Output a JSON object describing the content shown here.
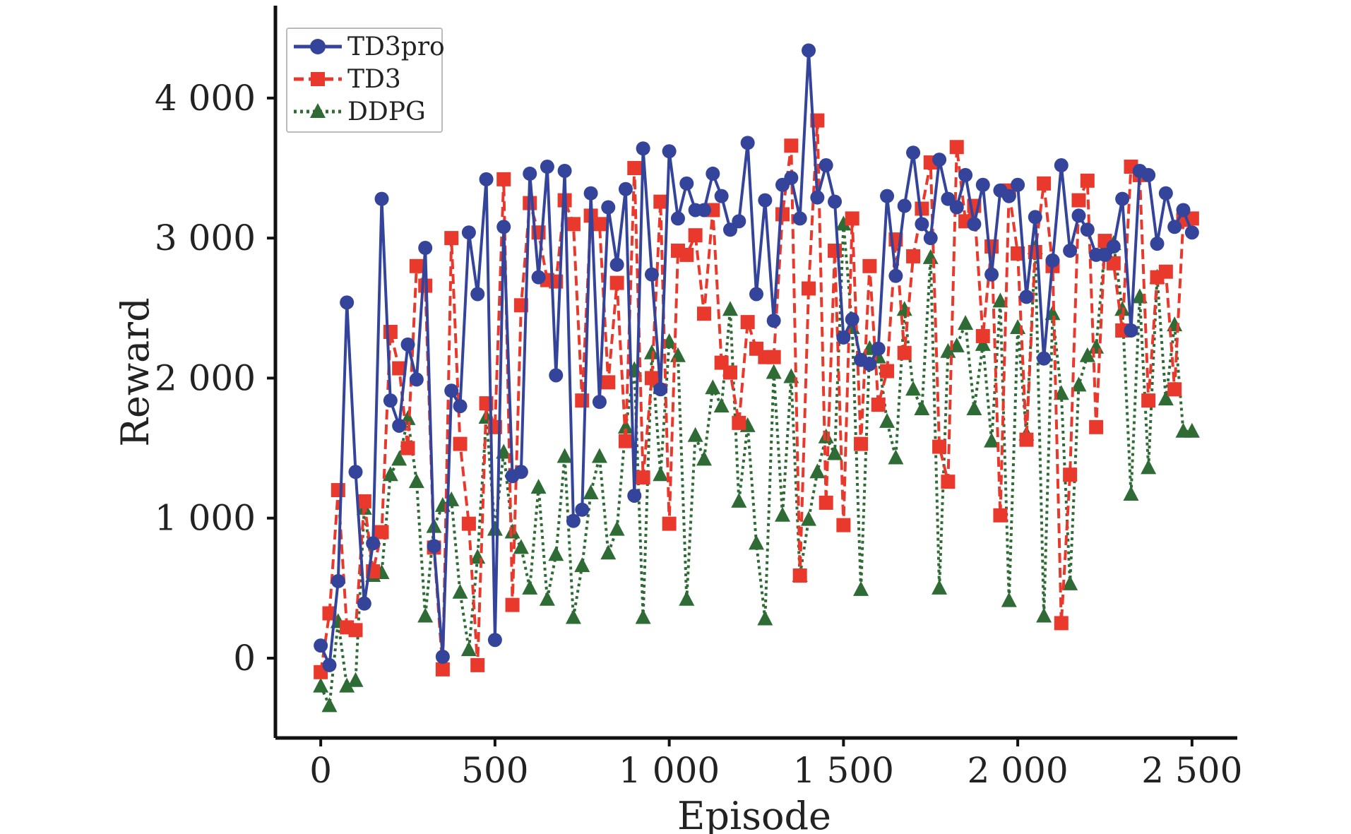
{
  "chart_data": {
    "type": "line",
    "title": "",
    "xlabel": "Episode",
    "ylabel": "Reward",
    "xlim": [
      -130,
      2630
    ],
    "ylim": [
      -570,
      4660
    ],
    "xticks": [
      0,
      500,
      1000,
      1500,
      2000,
      2500
    ],
    "xtick_labels": [
      "0",
      "500",
      "1 000",
      "1 500",
      "2 000",
      "2 500"
    ],
    "yticks": [
      0,
      1000,
      2000,
      3000,
      4000
    ],
    "ytick_labels": [
      "0",
      "1 000",
      "2 000",
      "3 000",
      "4 000"
    ],
    "grid": false,
    "legend_position": "top-left",
    "series": [
      {
        "name": "TD3pro",
        "color": "#33449a",
        "line_style": "solid",
        "marker": "circle",
        "x": [
          0,
          25,
          50,
          75,
          100,
          125,
          150,
          175,
          200,
          225,
          250,
          275,
          300,
          325,
          350,
          375,
          400,
          425,
          450,
          475,
          500,
          525,
          550,
          575,
          600,
          625,
          650,
          675,
          700,
          725,
          750,
          775,
          800,
          825,
          850,
          875,
          900,
          925,
          950,
          975,
          1000,
          1025,
          1050,
          1075,
          1100,
          1125,
          1150,
          1175,
          1200,
          1225,
          1250,
          1275,
          1300,
          1325,
          1350,
          1375,
          1400,
          1425,
          1450,
          1475,
          1500,
          1525,
          1550,
          1575,
          1600,
          1625,
          1650,
          1675,
          1700,
          1725,
          1750,
          1775,
          1800,
          1825,
          1850,
          1875,
          1900,
          1925,
          1950,
          1975,
          2000,
          2025,
          2050,
          2075,
          2100,
          2125,
          2150,
          2175,
          2200,
          2225,
          2250,
          2275,
          2300,
          2325,
          2350,
          2375,
          2400,
          2425,
          2450,
          2475,
          2500
        ],
        "values": [
          90,
          -50,
          550,
          2540,
          1330,
          390,
          820,
          3280,
          1840,
          1660,
          2240,
          1990,
          2930,
          800,
          10,
          1910,
          1800,
          3040,
          2600,
          3420,
          130,
          3080,
          1300,
          1330,
          3460,
          2720,
          3510,
          2020,
          3480,
          980,
          1060,
          3320,
          1830,
          3220,
          2810,
          3350,
          1160,
          3640,
          2740,
          1920,
          3620,
          3140,
          3390,
          3200,
          3200,
          3460,
          3300,
          3060,
          3120,
          3680,
          2600,
          3270,
          2410,
          3380,
          3430,
          3140,
          4340,
          3290,
          3520,
          3260,
          2290,
          2420,
          2130,
          2100,
          2210,
          3300,
          2730,
          3230,
          3610,
          3100,
          3000,
          3560,
          3280,
          3220,
          3450,
          3100,
          3380,
          2740,
          3340,
          3300,
          3380,
          2580,
          3150,
          2140,
          2840,
          3520,
          2910,
          3160,
          3060,
          2880,
          2880,
          2940,
          3280,
          2340,
          3480,
          3450,
          2960,
          3320,
          3080,
          3200,
          3040
        ]
      },
      {
        "name": "TD3",
        "color": "#e8392c",
        "line_style": "dashed",
        "marker": "square",
        "x": [
          0,
          25,
          50,
          75,
          100,
          125,
          150,
          175,
          200,
          225,
          250,
          275,
          300,
          325,
          350,
          375,
          400,
          425,
          450,
          475,
          500,
          525,
          550,
          575,
          600,
          625,
          650,
          675,
          700,
          725,
          750,
          775,
          800,
          825,
          850,
          875,
          900,
          925,
          950,
          975,
          1000,
          1025,
          1050,
          1075,
          1100,
          1125,
          1150,
          1175,
          1200,
          1225,
          1250,
          1275,
          1300,
          1325,
          1350,
          1375,
          1400,
          1425,
          1450,
          1475,
          1500,
          1525,
          1550,
          1575,
          1600,
          1625,
          1650,
          1675,
          1700,
          1725,
          1750,
          1775,
          1800,
          1825,
          1850,
          1875,
          1900,
          1925,
          1950,
          1975,
          2000,
          2025,
          2050,
          2075,
          2100,
          2125,
          2150,
          2175,
          2200,
          2225,
          2250,
          2275,
          2300,
          2325,
          2350,
          2375,
          2400,
          2425,
          2450,
          2475,
          2500
        ],
        "values": [
          -100,
          320,
          1200,
          220,
          200,
          1120,
          620,
          900,
          2330,
          2070,
          1500,
          2800,
          2660,
          790,
          -80,
          3000,
          1530,
          960,
          -50,
          1820,
          1650,
          3420,
          380,
          2520,
          3250,
          3040,
          2700,
          2690,
          3270,
          3100,
          1840,
          3160,
          3100,
          1970,
          2680,
          1550,
          3500,
          1290,
          2000,
          3260,
          960,
          2910,
          2880,
          3020,
          2460,
          3200,
          2110,
          2040,
          1680,
          2400,
          2210,
          2150,
          2150,
          3170,
          3660,
          590,
          2640,
          3840,
          1110,
          2910,
          950,
          3140,
          1530,
          2800,
          1810,
          2050,
          2990,
          2180,
          2870,
          3210,
          3540,
          1510,
          1260,
          3650,
          3120,
          3230,
          2300,
          2940,
          1020,
          3340,
          2890,
          1560,
          2900,
          3390,
          2800,
          250,
          1310,
          3270,
          3410,
          1650,
          2980,
          2820,
          2340,
          3510,
          3450,
          1840,
          2720,
          2760,
          1920,
          3130,
          3140
        ]
      },
      {
        "name": "DDPG",
        "color": "#2e6b35",
        "line_style": "dotted",
        "marker": "triangle",
        "x": [
          0,
          25,
          50,
          75,
          100,
          125,
          150,
          175,
          200,
          225,
          250,
          275,
          300,
          325,
          350,
          375,
          400,
          425,
          450,
          475,
          500,
          525,
          550,
          575,
          600,
          625,
          650,
          675,
          700,
          725,
          750,
          775,
          800,
          825,
          850,
          875,
          900,
          925,
          950,
          975,
          1000,
          1025,
          1050,
          1075,
          1100,
          1125,
          1150,
          1175,
          1200,
          1225,
          1250,
          1275,
          1300,
          1325,
          1350,
          1375,
          1400,
          1425,
          1450,
          1475,
          1500,
          1525,
          1550,
          1575,
          1600,
          1625,
          1650,
          1675,
          1700,
          1725,
          1750,
          1775,
          1800,
          1825,
          1850,
          1875,
          1900,
          1925,
          1950,
          1975,
          2000,
          2025,
          2050,
          2075,
          2100,
          2125,
          2150,
          2175,
          2200,
          2225,
          2250,
          2275,
          2300,
          2325,
          2350,
          2375,
          2400,
          2425,
          2450,
          2475,
          2500
        ],
        "values": [
          -200,
          -340,
          260,
          -200,
          -160,
          1070,
          590,
          610,
          1310,
          1420,
          1710,
          1260,
          300,
          940,
          1090,
          1130,
          470,
          60,
          720,
          1720,
          920,
          1470,
          900,
          790,
          500,
          1220,
          420,
          740,
          1440,
          290,
          660,
          1180,
          1440,
          750,
          920,
          1650,
          2060,
          290,
          2180,
          1310,
          2260,
          2160,
          420,
          1590,
          1420,
          1930,
          1800,
          2490,
          1120,
          1660,
          820,
          280,
          2040,
          1020,
          2010,
          590,
          990,
          1330,
          1580,
          1460,
          3100,
          2360,
          490,
          2210,
          2150,
          1690,
          1430,
          2490,
          1920,
          1780,
          2860,
          500,
          2190,
          2230,
          2390,
          1780,
          2240,
          1550,
          2550,
          410,
          2360,
          1600,
          2930,
          300,
          2460,
          1890,
          530,
          1950,
          2160,
          2220,
          2930,
          2960,
          2490,
          1170,
          2580,
          1360,
          2720,
          1850,
          2380,
          1620,
          1620
        ]
      }
    ]
  }
}
